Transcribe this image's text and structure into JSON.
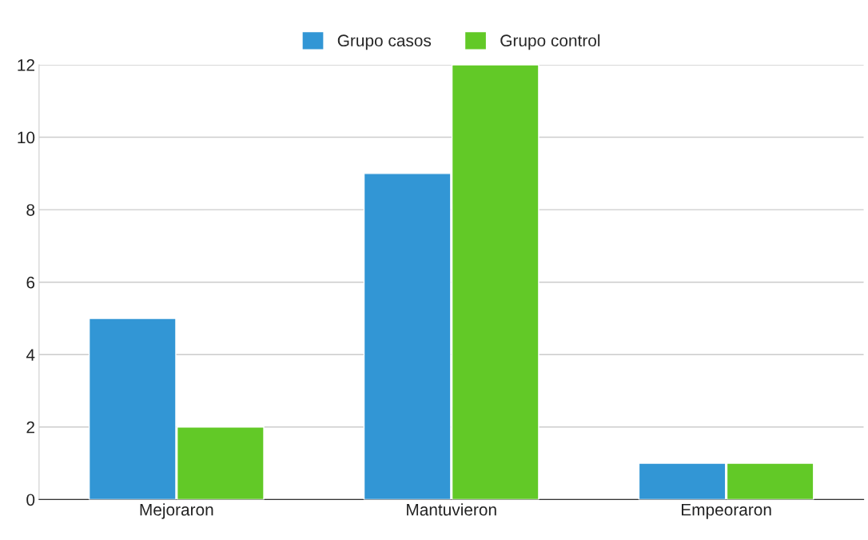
{
  "chart_data": {
    "type": "bar",
    "categories": [
      "Mejoraron",
      "Mantuvieron",
      "Empeoraron"
    ],
    "series": [
      {
        "name": "Grupo casos",
        "color": "#3296d5",
        "values": [
          5,
          9,
          1
        ]
      },
      {
        "name": "Grupo control",
        "color": "#62c927",
        "values": [
          2,
          12,
          1
        ]
      }
    ],
    "ylim": [
      0,
      12
    ],
    "yticks": [
      0,
      2,
      4,
      6,
      8,
      10,
      12
    ],
    "grid": "y",
    "legend": "top"
  }
}
